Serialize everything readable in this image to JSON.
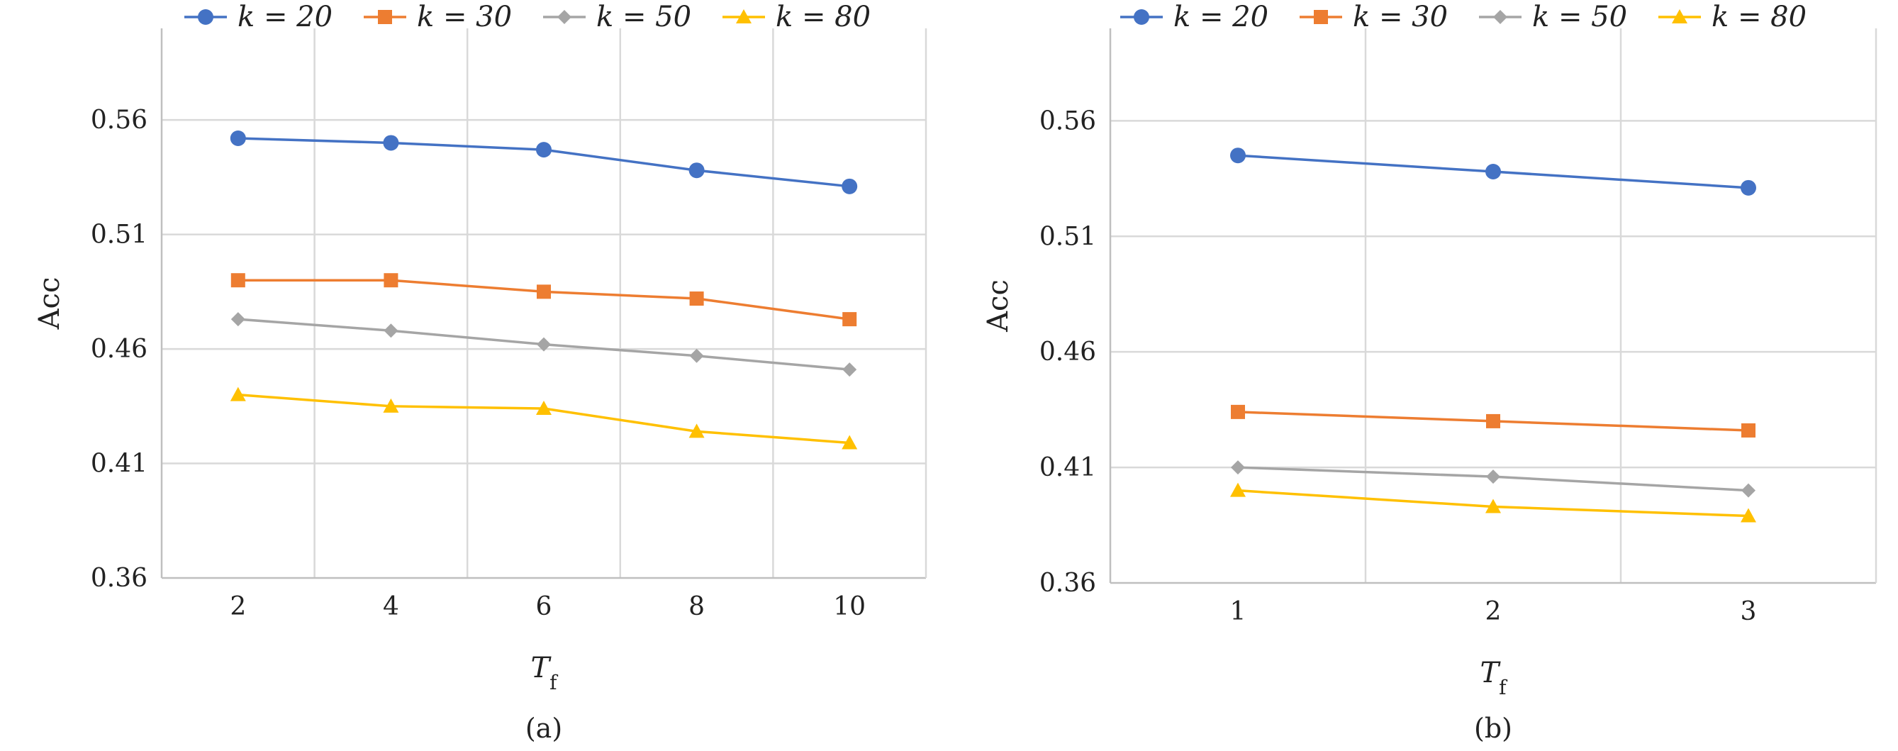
{
  "chart_data": [
    {
      "type": "line",
      "caption": "(a)",
      "xlabel": "T",
      "xlabel_sub": "f",
      "ylabel": "Acc",
      "categories": [
        "2",
        "4",
        "6",
        "8",
        "10"
      ],
      "yticks": [
        "0.36",
        "0.41",
        "0.46",
        "0.51",
        "0.56"
      ],
      "ylim": [
        0.36,
        0.6
      ],
      "grid": true,
      "legend": "top",
      "series": [
        {
          "name": "k = 20",
          "marker": "circle",
          "color": "#4472C4",
          "values": [
            0.552,
            0.55,
            0.547,
            0.538,
            0.531
          ]
        },
        {
          "name": "k = 30",
          "marker": "square",
          "color": "#ED7D31",
          "values": [
            0.49,
            0.49,
            0.485,
            0.482,
            0.473
          ]
        },
        {
          "name": "k = 50",
          "marker": "diamond",
          "color": "#A5A5A5",
          "values": [
            0.473,
            0.468,
            0.462,
            0.457,
            0.451
          ]
        },
        {
          "name": "k = 80",
          "marker": "triangle",
          "color": "#FFC000",
          "values": [
            0.44,
            0.435,
            0.434,
            0.424,
            0.419
          ]
        }
      ]
    },
    {
      "type": "line",
      "caption": "(b)",
      "xlabel": "T",
      "xlabel_sub": "f",
      "ylabel": "Acc",
      "categories": [
        "1",
        "2",
        "3"
      ],
      "yticks": [
        "0.36",
        "0.41",
        "0.46",
        "0.51",
        "0.56"
      ],
      "ylim": [
        0.36,
        0.6
      ],
      "grid": true,
      "legend": "top",
      "series": [
        {
          "name": "k = 20",
          "marker": "circle",
          "color": "#4472C4",
          "values": [
            0.545,
            0.538,
            0.531
          ]
        },
        {
          "name": "k = 30",
          "marker": "square",
          "color": "#ED7D31",
          "values": [
            0.434,
            0.43,
            0.426
          ]
        },
        {
          "name": "k = 50",
          "marker": "diamond",
          "color": "#A5A5A5",
          "values": [
            0.41,
            0.406,
            0.4
          ]
        },
        {
          "name": "k = 80",
          "marker": "triangle",
          "color": "#FFC000",
          "values": [
            0.4,
            0.393,
            0.389
          ]
        }
      ]
    }
  ]
}
